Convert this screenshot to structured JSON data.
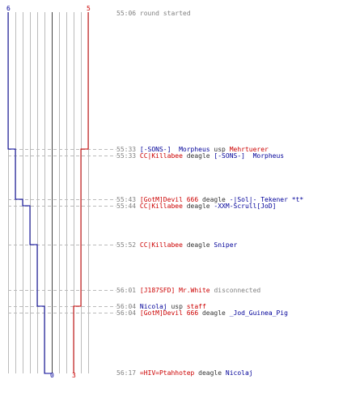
{
  "colors": {
    "red_team": "#cc0000",
    "blue_team": "#000099",
    "time": "#808080",
    "text": "#333333",
    "grid": "#bbbbbb",
    "center": "#444444",
    "dash": "#bbbbbb"
  },
  "counts": {
    "blue_start": "6",
    "red_start": "5",
    "blue_end": "0",
    "red_end": "3"
  },
  "events": [
    {
      "parts": [
        {
          "t": "55:06",
          "c": "time"
        },
        {
          "t": " round started",
          "c": "msg"
        }
      ]
    },
    {
      "parts": [
        {
          "t": "55:33",
          "c": "time"
        },
        {
          "t": " [-SONS-]  Morpheus",
          "c": "blue"
        },
        {
          "t": " usp ",
          "c": "plain"
        },
        {
          "t": "Mehrtuerer",
          "c": "red"
        }
      ]
    },
    {
      "parts": [
        {
          "t": "55:33",
          "c": "time"
        },
        {
          "t": " CC|Killabee",
          "c": "red"
        },
        {
          "t": " deagle ",
          "c": "plain"
        },
        {
          "t": "[-SONS-]  Morpheus",
          "c": "blue"
        }
      ]
    },
    {
      "parts": [
        {
          "t": "55:43",
          "c": "time"
        },
        {
          "t": " [GotM]Devil 666",
          "c": "red"
        },
        {
          "t": " deagle ",
          "c": "plain"
        },
        {
          "t": "-|Sol|- Tekener *t*",
          "c": "blue"
        }
      ]
    },
    {
      "parts": [
        {
          "t": "55:44",
          "c": "time"
        },
        {
          "t": " CC|Killabee",
          "c": "red"
        },
        {
          "t": " deagle ",
          "c": "plain"
        },
        {
          "t": "-XXM-Scrull[JoD]",
          "c": "blue"
        }
      ]
    },
    {
      "parts": [
        {
          "t": "55:52",
          "c": "time"
        },
        {
          "t": " CC|Killabee",
          "c": "red"
        },
        {
          "t": " deagle ",
          "c": "plain"
        },
        {
          "t": "Sniper",
          "c": "blue"
        }
      ]
    },
    {
      "parts": [
        {
          "t": "56:01",
          "c": "time"
        },
        {
          "t": " [J187SFD]",
          "c": "red"
        },
        {
          "t": " Mr.White",
          "c": "red"
        },
        {
          "t": " disconnected",
          "c": "msg"
        }
      ]
    },
    {
      "parts": [
        {
          "t": "56:04",
          "c": "time"
        },
        {
          "t": " Nicolaj",
          "c": "blue"
        },
        {
          "t": " usp ",
          "c": "plain"
        },
        {
          "t": "staff",
          "c": "red"
        }
      ]
    },
    {
      "parts": [
        {
          "t": "56:04",
          "c": "time"
        },
        {
          "t": " [GotM]Devil 666",
          "c": "red"
        },
        {
          "t": " deagle ",
          "c": "plain"
        },
        {
          "t": "_Jod_Guinea_Pig",
          "c": "blue"
        }
      ]
    },
    {
      "parts": [
        {
          "t": "56:17",
          "c": "time"
        },
        {
          "t": " =HIV=Ptahhotep",
          "c": "red"
        },
        {
          "t": " deagle ",
          "c": "plain"
        },
        {
          "t": "Nicolaj",
          "c": "blue"
        }
      ]
    }
  ]
}
